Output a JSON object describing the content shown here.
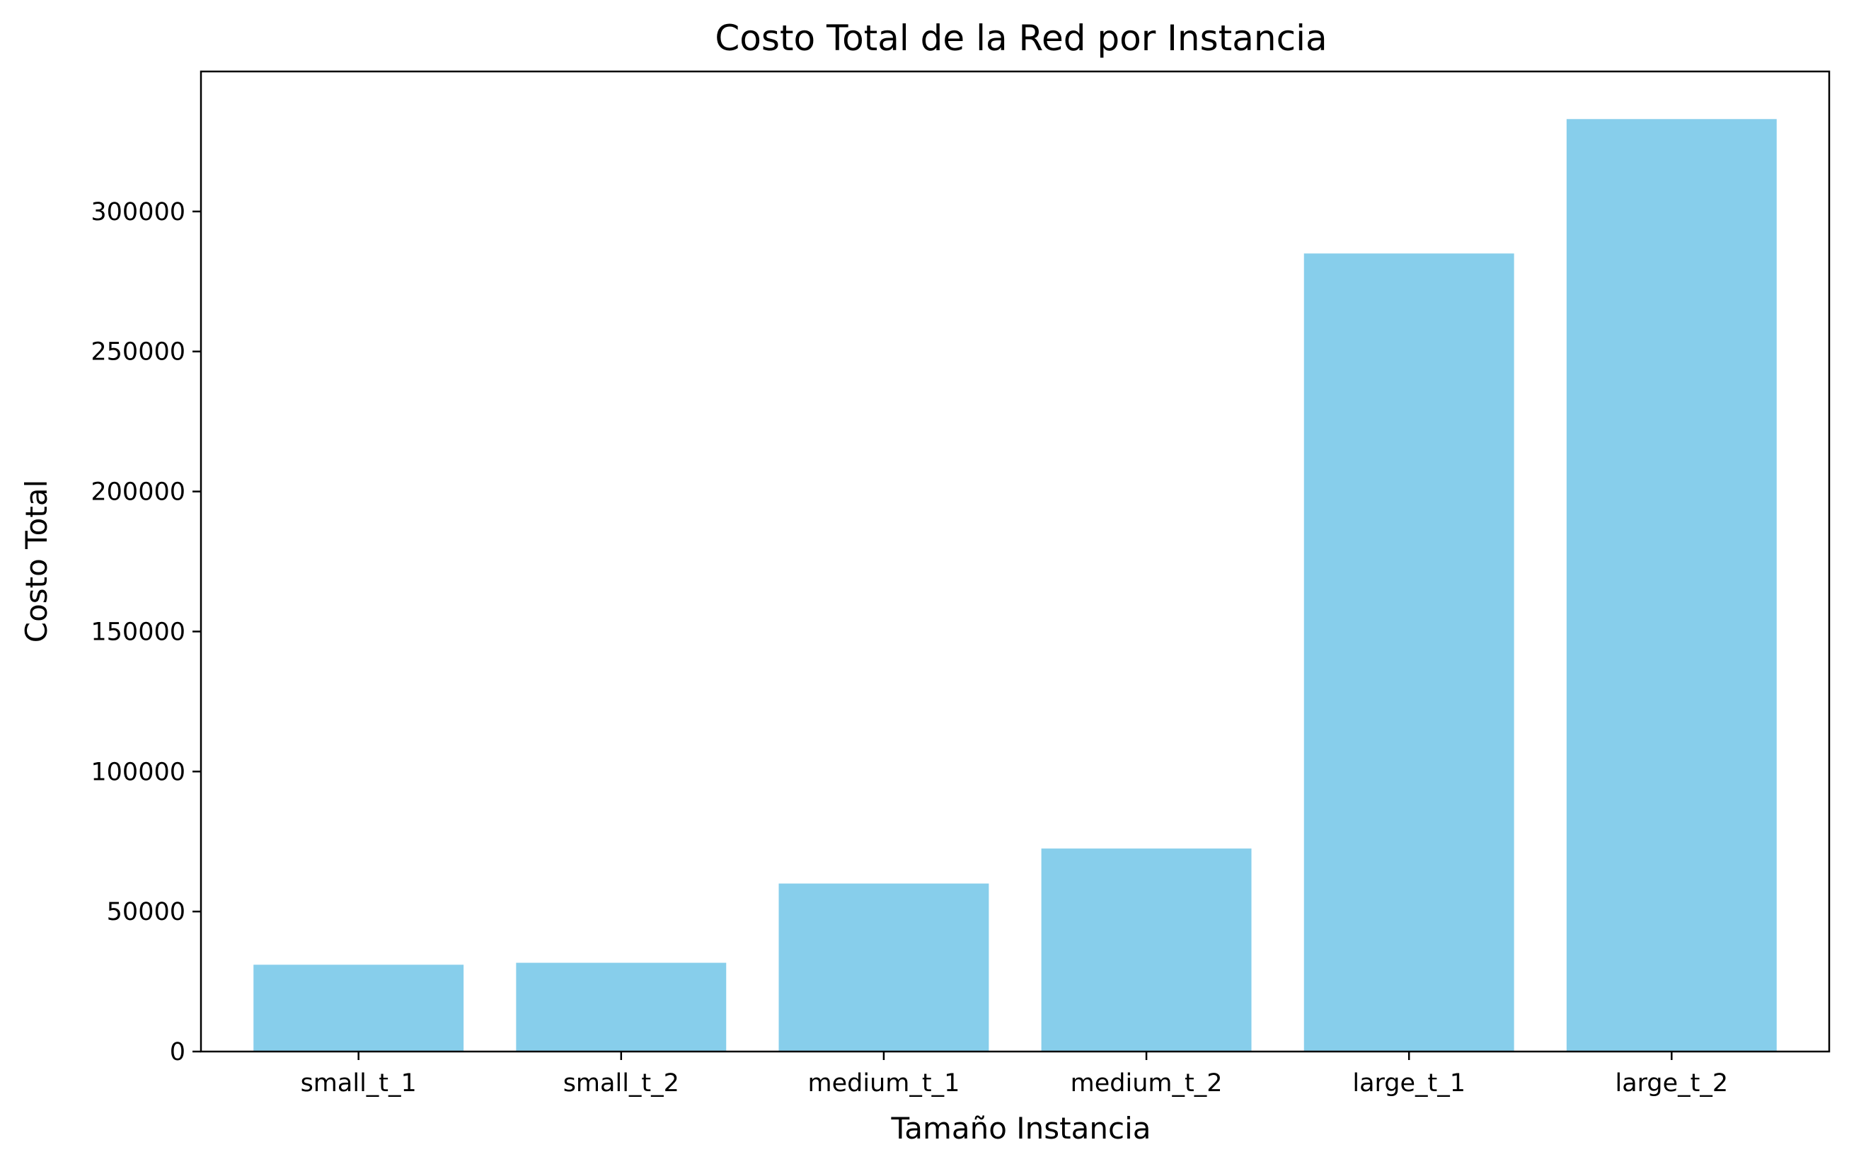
{
  "chart_data": {
    "type": "bar",
    "title": "Costo Total de la Red por Instancia",
    "xlabel": "Tamaño Instancia",
    "ylabel": "Costo Total",
    "categories": [
      "small_t_1",
      "small_t_2",
      "medium_t_1",
      "medium_t_2",
      "large_t_1",
      "large_t_2"
    ],
    "values": [
      31000,
      31700,
      60000,
      72500,
      285000,
      333000
    ],
    "ylim": [
      0,
      350000
    ],
    "yticks": [
      0,
      50000,
      100000,
      150000,
      200000,
      250000,
      300000
    ],
    "ytick_labels": [
      "0",
      "50000",
      "100000",
      "150000",
      "200000",
      "250000",
      "300000"
    ],
    "bar_color": "#87ceeb",
    "grid": false,
    "legend": "none"
  }
}
